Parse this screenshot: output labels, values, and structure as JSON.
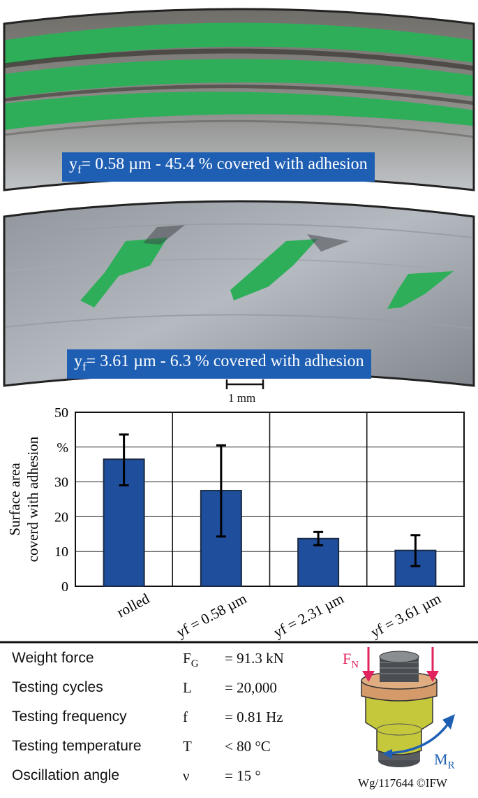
{
  "photos": [
    {
      "label_prefix": "y",
      "label_sub": "f",
      "label_rest": "= 0.58 µm - 45.4 % covered with adhesion"
    },
    {
      "label_prefix": "y",
      "label_sub": "f",
      "label_rest": "= 3.61 µm - 6.3 % covered with adhesion"
    }
  ],
  "scale_bar": {
    "label": "1 mm"
  },
  "chart_data": {
    "type": "bar",
    "categories": [
      "rolled",
      "yf = 0.58 µm",
      "yf = 2.31 µm",
      "yf = 3.61 µm"
    ],
    "values": [
      36.5,
      27.5,
      13.7,
      10.3
    ],
    "error_low": [
      29.0,
      14.3,
      11.8,
      5.8
    ],
    "error_high": [
      43.6,
      40.5,
      15.6,
      14.7
    ],
    "ylabel_line1": "Surface area",
    "ylabel_line2": "coverd with adhesion",
    "yticks": [
      "0",
      "10",
      "20",
      "30",
      "%",
      "50"
    ],
    "ylim": [
      0,
      50
    ],
    "grid": true,
    "bar_color": "#1f4f9c"
  },
  "parameters": [
    {
      "label": "Weight force",
      "symbol": "F",
      "symbol_sub": "G",
      "value": "= 91.3 kN"
    },
    {
      "label": "Testing cycles",
      "symbol": "L",
      "symbol_sub": "",
      "value": "= 20,000"
    },
    {
      "label": "Testing frequency",
      "symbol": "f",
      "symbol_sub": "",
      "value": "= 0.81 Hz"
    },
    {
      "label": "Testing temperature",
      "symbol": "T",
      "symbol_sub": "",
      "value": "< 80 °C"
    },
    {
      "label": "Oscillation angle",
      "symbol": "ν",
      "symbol_sub": "",
      "value": "= 15 °"
    }
  ],
  "specimen": {
    "fn_main": "F",
    "fn_sub": "N",
    "mr_main": "M",
    "mr_sub": "R",
    "fn_color": "#e0245e",
    "mr_color": "#1f5fb3"
  },
  "credit": "Wg/117644 ©IFW"
}
